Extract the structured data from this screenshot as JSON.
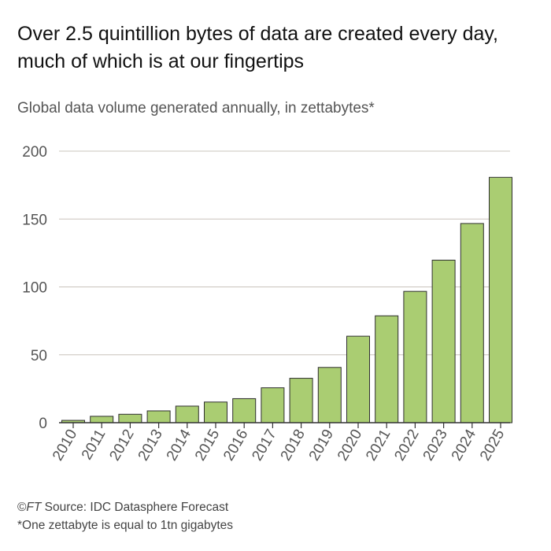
{
  "header": {
    "title": "Over 2.5 quintillion bytes of data are created every day, much of which is at our fingertips",
    "subtitle": "Global data volume generated annually, in zettabytes*"
  },
  "footer": {
    "copyright": "©",
    "brand": "FT",
    "source": " Source: IDC Datasphere Forecast",
    "footnote": "*One zettabyte is equal to 1tn gigabytes"
  },
  "colors": {
    "bar_fill": "#aacd72",
    "bar_stroke": "#2e2e2e",
    "grid": "#c9c4bc",
    "axis": "#333333",
    "tick_text": "#555555"
  },
  "chart_data": {
    "type": "bar",
    "title": "Over 2.5 quintillion bytes of data are created every day, much of which is at our fingertips",
    "subtitle": "Global data volume generated annually, in zettabytes*",
    "xlabel": "",
    "ylabel": "",
    "categories": [
      "2010",
      "2011",
      "2012",
      "2013",
      "2014",
      "2015",
      "2016",
      "2017",
      "2018",
      "2019",
      "2020",
      "2021",
      "2022",
      "2023",
      "2024",
      "2025"
    ],
    "values": [
      2,
      5,
      6.5,
      9,
      12.5,
      15.5,
      18,
      26,
      33,
      41,
      64,
      79,
      97,
      120,
      147,
      181
    ],
    "ylim": [
      0,
      200
    ],
    "yticks": [
      0,
      50,
      100,
      150,
      200
    ],
    "grid": true,
    "legend": "none"
  }
}
